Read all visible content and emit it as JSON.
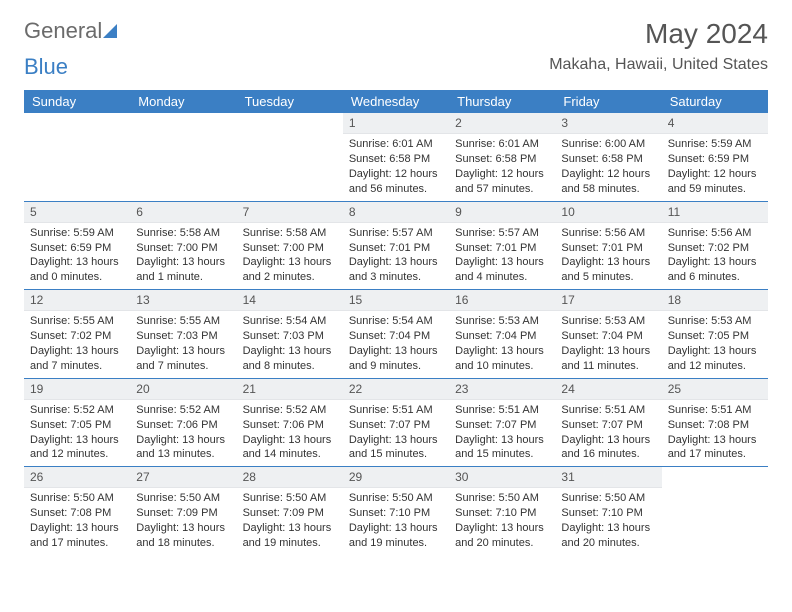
{
  "brand": {
    "part1": "General",
    "part2": "Blue"
  },
  "title": "May 2024",
  "location": "Makaha, Hawaii, United States",
  "dayHeaders": [
    "Sunday",
    "Monday",
    "Tuesday",
    "Wednesday",
    "Thursday",
    "Friday",
    "Saturday"
  ],
  "colors": {
    "accent": "#3b7fc4",
    "headerText": "#ffffff",
    "dayNumBg": "#eef0f2",
    "text": "#333333",
    "background": "#ffffff"
  },
  "layout": {
    "cellHeightPx": 88,
    "fontSizePt": 8
  },
  "weeks": [
    [
      {
        "empty": true
      },
      {
        "empty": true
      },
      {
        "empty": true
      },
      {
        "day": "1",
        "sunrise": "6:01 AM",
        "sunset": "6:58 PM",
        "daylight": "12 hours and 56 minutes."
      },
      {
        "day": "2",
        "sunrise": "6:01 AM",
        "sunset": "6:58 PM",
        "daylight": "12 hours and 57 minutes."
      },
      {
        "day": "3",
        "sunrise": "6:00 AM",
        "sunset": "6:58 PM",
        "daylight": "12 hours and 58 minutes."
      },
      {
        "day": "4",
        "sunrise": "5:59 AM",
        "sunset": "6:59 PM",
        "daylight": "12 hours and 59 minutes."
      }
    ],
    [
      {
        "day": "5",
        "sunrise": "5:59 AM",
        "sunset": "6:59 PM",
        "daylight": "13 hours and 0 minutes."
      },
      {
        "day": "6",
        "sunrise": "5:58 AM",
        "sunset": "7:00 PM",
        "daylight": "13 hours and 1 minute."
      },
      {
        "day": "7",
        "sunrise": "5:58 AM",
        "sunset": "7:00 PM",
        "daylight": "13 hours and 2 minutes."
      },
      {
        "day": "8",
        "sunrise": "5:57 AM",
        "sunset": "7:01 PM",
        "daylight": "13 hours and 3 minutes."
      },
      {
        "day": "9",
        "sunrise": "5:57 AM",
        "sunset": "7:01 PM",
        "daylight": "13 hours and 4 minutes."
      },
      {
        "day": "10",
        "sunrise": "5:56 AM",
        "sunset": "7:01 PM",
        "daylight": "13 hours and 5 minutes."
      },
      {
        "day": "11",
        "sunrise": "5:56 AM",
        "sunset": "7:02 PM",
        "daylight": "13 hours and 6 minutes."
      }
    ],
    [
      {
        "day": "12",
        "sunrise": "5:55 AM",
        "sunset": "7:02 PM",
        "daylight": "13 hours and 7 minutes."
      },
      {
        "day": "13",
        "sunrise": "5:55 AM",
        "sunset": "7:03 PM",
        "daylight": "13 hours and 7 minutes."
      },
      {
        "day": "14",
        "sunrise": "5:54 AM",
        "sunset": "7:03 PM",
        "daylight": "13 hours and 8 minutes."
      },
      {
        "day": "15",
        "sunrise": "5:54 AM",
        "sunset": "7:04 PM",
        "daylight": "13 hours and 9 minutes."
      },
      {
        "day": "16",
        "sunrise": "5:53 AM",
        "sunset": "7:04 PM",
        "daylight": "13 hours and 10 minutes."
      },
      {
        "day": "17",
        "sunrise": "5:53 AM",
        "sunset": "7:04 PM",
        "daylight": "13 hours and 11 minutes."
      },
      {
        "day": "18",
        "sunrise": "5:53 AM",
        "sunset": "7:05 PM",
        "daylight": "13 hours and 12 minutes."
      }
    ],
    [
      {
        "day": "19",
        "sunrise": "5:52 AM",
        "sunset": "7:05 PM",
        "daylight": "13 hours and 12 minutes."
      },
      {
        "day": "20",
        "sunrise": "5:52 AM",
        "sunset": "7:06 PM",
        "daylight": "13 hours and 13 minutes."
      },
      {
        "day": "21",
        "sunrise": "5:52 AM",
        "sunset": "7:06 PM",
        "daylight": "13 hours and 14 minutes."
      },
      {
        "day": "22",
        "sunrise": "5:51 AM",
        "sunset": "7:07 PM",
        "daylight": "13 hours and 15 minutes."
      },
      {
        "day": "23",
        "sunrise": "5:51 AM",
        "sunset": "7:07 PM",
        "daylight": "13 hours and 15 minutes."
      },
      {
        "day": "24",
        "sunrise": "5:51 AM",
        "sunset": "7:07 PM",
        "daylight": "13 hours and 16 minutes."
      },
      {
        "day": "25",
        "sunrise": "5:51 AM",
        "sunset": "7:08 PM",
        "daylight": "13 hours and 17 minutes."
      }
    ],
    [
      {
        "day": "26",
        "sunrise": "5:50 AM",
        "sunset": "7:08 PM",
        "daylight": "13 hours and 17 minutes."
      },
      {
        "day": "27",
        "sunrise": "5:50 AM",
        "sunset": "7:09 PM",
        "daylight": "13 hours and 18 minutes."
      },
      {
        "day": "28",
        "sunrise": "5:50 AM",
        "sunset": "7:09 PM",
        "daylight": "13 hours and 19 minutes."
      },
      {
        "day": "29",
        "sunrise": "5:50 AM",
        "sunset": "7:10 PM",
        "daylight": "13 hours and 19 minutes."
      },
      {
        "day": "30",
        "sunrise": "5:50 AM",
        "sunset": "7:10 PM",
        "daylight": "13 hours and 20 minutes."
      },
      {
        "day": "31",
        "sunrise": "5:50 AM",
        "sunset": "7:10 PM",
        "daylight": "13 hours and 20 minutes."
      },
      {
        "empty": true
      }
    ]
  ]
}
